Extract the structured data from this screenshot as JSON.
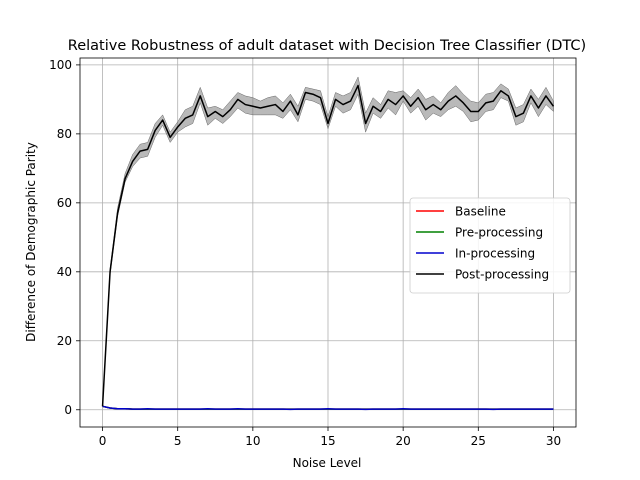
{
  "chart_data": {
    "type": "line",
    "title": "Relative Robustness of adult dataset with Decision Tree Classifier (DTC)",
    "xlabel": "Noise Level",
    "ylabel": "Difference of Demographic Parity",
    "xlim": [
      -1.5,
      31.5
    ],
    "ylim": [
      -5,
      102
    ],
    "xticks": [
      0,
      5,
      10,
      15,
      20,
      25,
      30
    ],
    "xtick_labels": [
      "0",
      "5",
      "10",
      "15",
      "20",
      "25",
      "30"
    ],
    "yticks": [
      0,
      20,
      40,
      60,
      80,
      100
    ],
    "ytick_labels": [
      "0",
      "20",
      "40",
      "60",
      "80",
      "100"
    ],
    "grid": true,
    "legend_position": "center-right",
    "x": [
      0,
      0.5,
      1,
      1.5,
      2,
      2.5,
      3,
      3.5,
      4,
      4.5,
      5,
      5.5,
      6,
      6.5,
      7,
      7.5,
      8,
      8.5,
      9,
      9.5,
      10,
      10.5,
      11,
      11.5,
      12,
      12.5,
      13,
      13.5,
      14,
      14.5,
      15,
      15.5,
      16,
      16.5,
      17,
      17.5,
      18,
      18.5,
      19,
      19.5,
      20,
      20.5,
      21,
      21.5,
      22,
      22.5,
      23,
      23.5,
      24,
      24.5,
      25,
      25.5,
      26,
      26.5,
      27,
      27.5,
      28,
      28.5,
      29,
      29.5,
      30
    ],
    "series": [
      {
        "name": "Baseline",
        "color": "#ff0000",
        "values": [
          1,
          0.5,
          0.3,
          0.3,
          0.2,
          0.2,
          0.2,
          0.2,
          0.2,
          0.2,
          0.2,
          0.2,
          0.2,
          0.2,
          0.2,
          0.2,
          0.2,
          0.2,
          0.2,
          0.2,
          0.2,
          0.2,
          0.2,
          0.2,
          0.2,
          0.2,
          0.2,
          0.2,
          0.2,
          0.2,
          0.2,
          0.2,
          0.2,
          0.2,
          0.2,
          0.2,
          0.2,
          0.2,
          0.2,
          0.2,
          0.2,
          0.2,
          0.2,
          0.2,
          0.2,
          0.2,
          0.2,
          0.2,
          0.2,
          0.2,
          0.2,
          0.2,
          0.2,
          0.2,
          0.2,
          0.2,
          0.2,
          0.2,
          0.2,
          0.2,
          0.2
        ]
      },
      {
        "name": "Pre-processing",
        "color": "#008000",
        "values": [
          1,
          0.5,
          0.3,
          0.3,
          0.2,
          0.2,
          0.2,
          0.2,
          0.2,
          0.2,
          0.2,
          0.2,
          0.2,
          0.2,
          0.2,
          0.2,
          0.2,
          0.2,
          0.2,
          0.2,
          0.2,
          0.2,
          0.2,
          0.2,
          0.2,
          0.2,
          0.2,
          0.2,
          0.2,
          0.2,
          0.2,
          0.2,
          0.2,
          0.2,
          0.2,
          0.2,
          0.2,
          0.2,
          0.2,
          0.2,
          0.2,
          0.2,
          0.2,
          0.2,
          0.2,
          0.2,
          0.2,
          0.2,
          0.2,
          0.2,
          0.2,
          0.2,
          0.2,
          0.2,
          0.2,
          0.2,
          0.2,
          0.2,
          0.2,
          0.2,
          0.2
        ]
      },
      {
        "name": "In-processing",
        "color": "#0000cd",
        "values": [
          1,
          0.5,
          0.3,
          0.3,
          0.2,
          0.2,
          0.3,
          0.2,
          0.2,
          0.2,
          0.2,
          0.2,
          0.2,
          0.2,
          0.3,
          0.2,
          0.2,
          0.2,
          0.3,
          0.2,
          0.2,
          0.2,
          0.2,
          0.2,
          0.2,
          0.1,
          0.2,
          0.2,
          0.2,
          0.2,
          0.3,
          0.2,
          0.2,
          0.2,
          0.2,
          0.1,
          0.2,
          0.2,
          0.2,
          0.2,
          0.3,
          0.2,
          0.2,
          0.2,
          0.2,
          0.2,
          0.2,
          0.2,
          0.2,
          0.2,
          0.2,
          0.2,
          0.1,
          0.2,
          0.2,
          0.2,
          0.2,
          0.2,
          0.2,
          0.2,
          0.2
        ]
      },
      {
        "name": "Post-processing",
        "color": "#000000",
        "values": [
          1,
          40,
          57,
          67,
          72,
          75,
          75.5,
          81,
          84,
          79,
          82,
          84.5,
          85.5,
          91,
          85,
          86.5,
          85,
          87,
          90,
          88.5,
          88,
          87.5,
          88,
          88.5,
          86.5,
          89.5,
          85.5,
          92,
          91.5,
          90.5,
          83,
          90,
          88.5,
          89.5,
          94,
          83,
          88,
          86.5,
          90,
          88.5,
          91,
          88,
          90.5,
          87,
          88.5,
          87,
          89.5,
          91,
          89,
          86.5,
          86.5,
          89,
          89.5,
          92.5,
          91,
          85,
          86,
          91,
          87.5,
          91,
          88
        ],
        "band_lower": [
          1,
          39,
          56,
          66,
          70.5,
          73,
          73.5,
          79,
          82.5,
          77.5,
          80.5,
          82,
          83,
          89,
          82.5,
          84.5,
          83,
          85,
          87.5,
          86,
          85.5,
          85.5,
          85.5,
          85.5,
          84.5,
          87,
          83.5,
          90,
          89.5,
          88.5,
          81.5,
          88,
          86,
          87,
          91.5,
          80.5,
          86,
          84.5,
          87.5,
          85.5,
          89.5,
          86,
          88,
          84,
          86,
          85,
          87,
          88,
          86.5,
          83.5,
          84,
          86.5,
          87,
          90.5,
          89.5,
          82.5,
          83.5,
          89,
          85,
          88.5,
          86.5
        ],
        "band_upper": [
          1.5,
          41,
          58.5,
          68.5,
          74,
          77,
          77.5,
          83,
          85.5,
          80.5,
          83.5,
          87,
          88,
          93.5,
          87.5,
          88,
          87,
          89.5,
          92,
          91,
          90.5,
          89.5,
          90.5,
          91,
          89,
          91.5,
          88,
          93.5,
          93,
          92.5,
          85,
          92,
          91,
          92,
          96.5,
          86,
          90.5,
          88.5,
          92.5,
          92,
          92.5,
          90.5,
          93,
          90,
          91,
          89,
          92,
          94,
          91.5,
          89.5,
          89,
          91.5,
          92,
          94.5,
          93,
          87.5,
          88.5,
          93,
          90,
          93.5,
          89.5
        ]
      }
    ]
  }
}
